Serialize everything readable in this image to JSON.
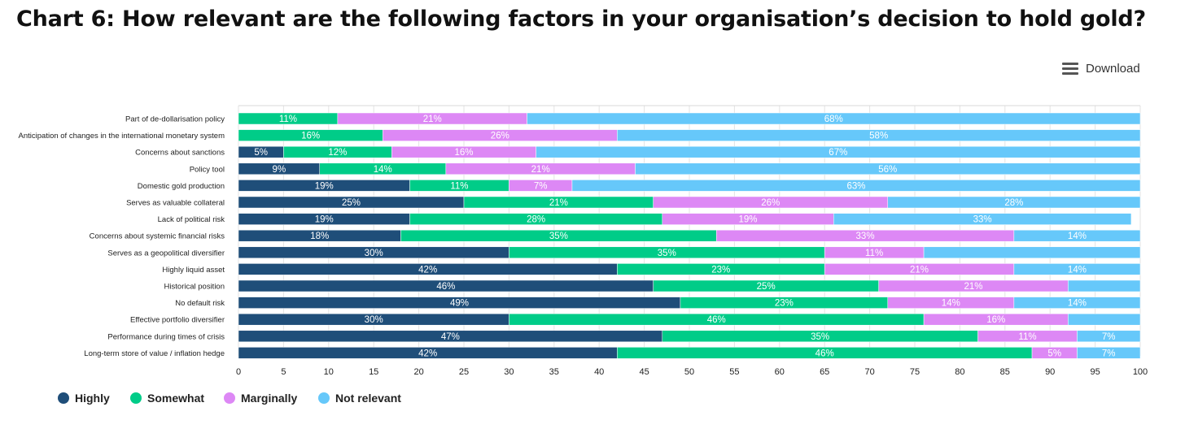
{
  "header": {
    "title": "Chart 6: How relevant are the following factors in your organisation’s decision to hold gold?",
    "download_label": "Download",
    "download_icon": "hamburger-menu-icon"
  },
  "chart_data": {
    "type": "bar",
    "orientation": "horizontal",
    "stacked": true,
    "categories": [
      "Part of de-dollarisation policy",
      "Anticipation of changes in the international monetary system",
      "Concerns about sanctions",
      "Policy tool",
      "Domestic gold production",
      "Serves as valuable collateral",
      "Lack of political risk",
      "Concerns about systemic financial risks",
      "Serves as a geopolitical diversifier",
      "Highly liquid asset",
      "Historical position",
      "No default risk",
      "Effective portfolio diversifier",
      "Performance during times of crisis",
      "Long-term store of value / inflation hedge"
    ],
    "series": [
      {
        "name": "Highly",
        "color": "#1f4e79",
        "values": [
          0,
          0,
          5,
          9,
          19,
          25,
          19,
          18,
          30,
          42,
          46,
          49,
          30,
          47,
          42
        ],
        "labels": [
          "",
          "",
          "5%",
          "9%",
          "19%",
          "25%",
          "19%",
          "18%",
          "30%",
          "42%",
          "46%",
          "49%",
          "30%",
          "47%",
          "42%"
        ]
      },
      {
        "name": "Somewhat",
        "color": "#00cc88",
        "values": [
          11,
          16,
          12,
          14,
          11,
          21,
          28,
          35,
          35,
          23,
          25,
          23,
          46,
          35,
          46
        ],
        "labels": [
          "11%",
          "16%",
          "12%",
          "14%",
          "11%",
          "21%",
          "28%",
          "35%",
          "35%",
          "23%",
          "25%",
          "23%",
          "46%",
          "35%",
          "46%"
        ]
      },
      {
        "name": "Marginally",
        "color": "#dd88f5",
        "values": [
          21,
          26,
          16,
          21,
          7,
          26,
          19,
          33,
          11,
          21,
          21,
          14,
          16,
          11,
          5
        ],
        "labels": [
          "21%",
          "26%",
          "16%",
          "21%",
          "7%",
          "26%",
          "19%",
          "33%",
          "11%",
          "21%",
          "21%",
          "14%",
          "16%",
          "11%",
          "5%"
        ]
      },
      {
        "name": "Not relevant",
        "color": "#66c8fa",
        "values": [
          68,
          58,
          67,
          56,
          63,
          28,
          33,
          14,
          24,
          14,
          8,
          14,
          8,
          7,
          7
        ],
        "labels": [
          "68%",
          "58%",
          "67%",
          "56%",
          "63%",
          "28%",
          "33%",
          "14%",
          "",
          "14%",
          "",
          "14%",
          "",
          "7%",
          "7%"
        ]
      }
    ],
    "xlim": [
      0,
      100
    ],
    "xticks": [
      "0",
      "5",
      "10",
      "15",
      "20",
      "25",
      "30",
      "35",
      "40",
      "45",
      "50",
      "55",
      "60",
      "65",
      "70",
      "75",
      "80",
      "85",
      "90",
      "95",
      "100"
    ],
    "xlabel": "",
    "ylabel": "",
    "grid": true,
    "legend_position": "bottom-left"
  }
}
